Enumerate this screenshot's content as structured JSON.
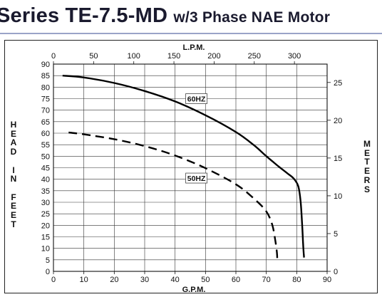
{
  "title": {
    "main": "Series TE-7.5-MD",
    "sub": "w/3 Phase NAE Motor"
  },
  "chart_data": {
    "type": "line",
    "xlabel": "G.P.M.",
    "x2label": "L.P.M.",
    "ylabel_left": "HEAD IN FEET",
    "ylabel_right": "METERS",
    "xlim": [
      0,
      90
    ],
    "x2lim": [
      0,
      340.7
    ],
    "ylim": [
      0,
      90
    ],
    "y2lim": [
      0,
      27.43
    ],
    "x_ticks": [
      0,
      10,
      20,
      30,
      40,
      50,
      60,
      70,
      80,
      90
    ],
    "x2_ticks": [
      0,
      50,
      100,
      150,
      200,
      250,
      300
    ],
    "y_ticks": [
      0,
      5,
      10,
      15,
      20,
      25,
      30,
      35,
      40,
      45,
      50,
      55,
      60,
      65,
      70,
      75,
      80,
      85,
      90
    ],
    "y2_ticks": [
      0,
      5,
      10,
      15,
      20,
      25
    ],
    "grid": true,
    "series": [
      {
        "name": "60HZ",
        "style": "solid",
        "color": "#000000",
        "x": [
          3,
          10,
          20,
          30,
          40,
          50,
          60,
          66,
          70,
          74,
          77,
          79,
          80.5,
          81.3,
          81.8,
          82.1,
          82.3,
          82.4
        ],
        "y": [
          85,
          84.2,
          81.8,
          78.3,
          73.8,
          67.8,
          60.5,
          54.7,
          50,
          45.6,
          42.5,
          40.3,
          37,
          30,
          20,
          12,
          8,
          6
        ]
      },
      {
        "name": "50HZ",
        "style": "dashed",
        "color": "#000000",
        "x": [
          5,
          10,
          20,
          30,
          40,
          50,
          60,
          66,
          70,
          72,
          73,
          73.5,
          73.6
        ],
        "y": [
          60.3,
          59.5,
          57.4,
          54.4,
          50.3,
          44.8,
          37.8,
          31.5,
          26,
          20,
          13,
          8,
          5
        ]
      }
    ],
    "annotations": [
      "60HZ",
      "50HZ"
    ]
  }
}
